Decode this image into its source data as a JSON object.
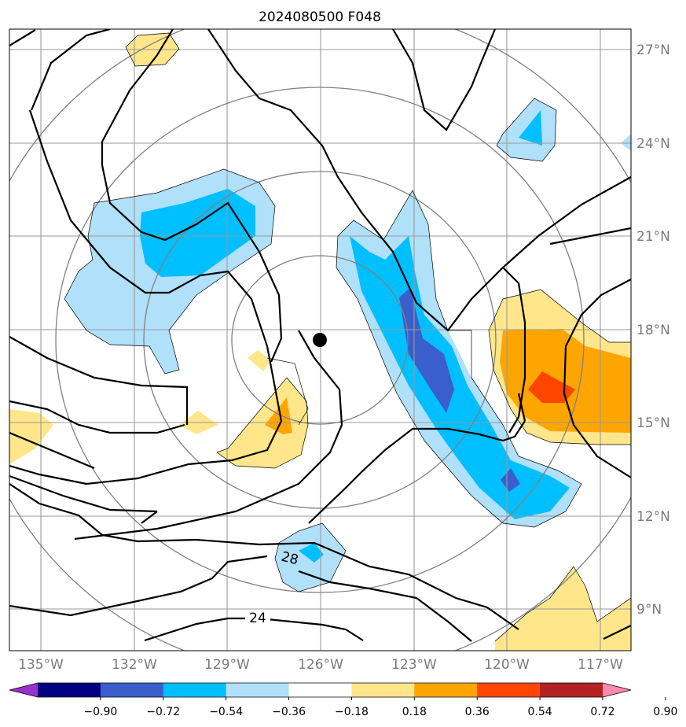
{
  "title": "2024080500 F048",
  "chart_data": {
    "type": "map",
    "x_ticks": [
      "135°W",
      "132°W",
      "129°W",
      "126°W",
      "123°W",
      "120°W",
      "117°W"
    ],
    "y_ticks": [
      "27°N",
      "24°N",
      "21°N",
      "18°N",
      "15°N",
      "12°N",
      "9°N"
    ],
    "lon_range": [
      -136,
      -116
    ],
    "lat_range": [
      8,
      27.5
    ],
    "grid": true,
    "center_marker": {
      "lon": -126,
      "lat": 17.6
    },
    "contour_labels": [
      {
        "text": "28",
        "lon": -127.0,
        "lat": 10.3
      },
      {
        "text": "24",
        "lon": -128.0,
        "lat": 8.8
      }
    ],
    "colorbar": {
      "colors": [
        "#9932cc",
        "#000080",
        "#3a5fcd",
        "#00bfff",
        "#b0e0fa",
        "#ffffff",
        "#ffe68a",
        "#ffa500",
        "#ff4500",
        "#b22222",
        "#ff88b0"
      ],
      "ticks": [
        "−0.90",
        "−0.72",
        "−0.54",
        "−0.36",
        "−0.18",
        "0.18",
        "0.36",
        "0.54",
        "0.72",
        "0.90"
      ],
      "extend": "both"
    }
  }
}
